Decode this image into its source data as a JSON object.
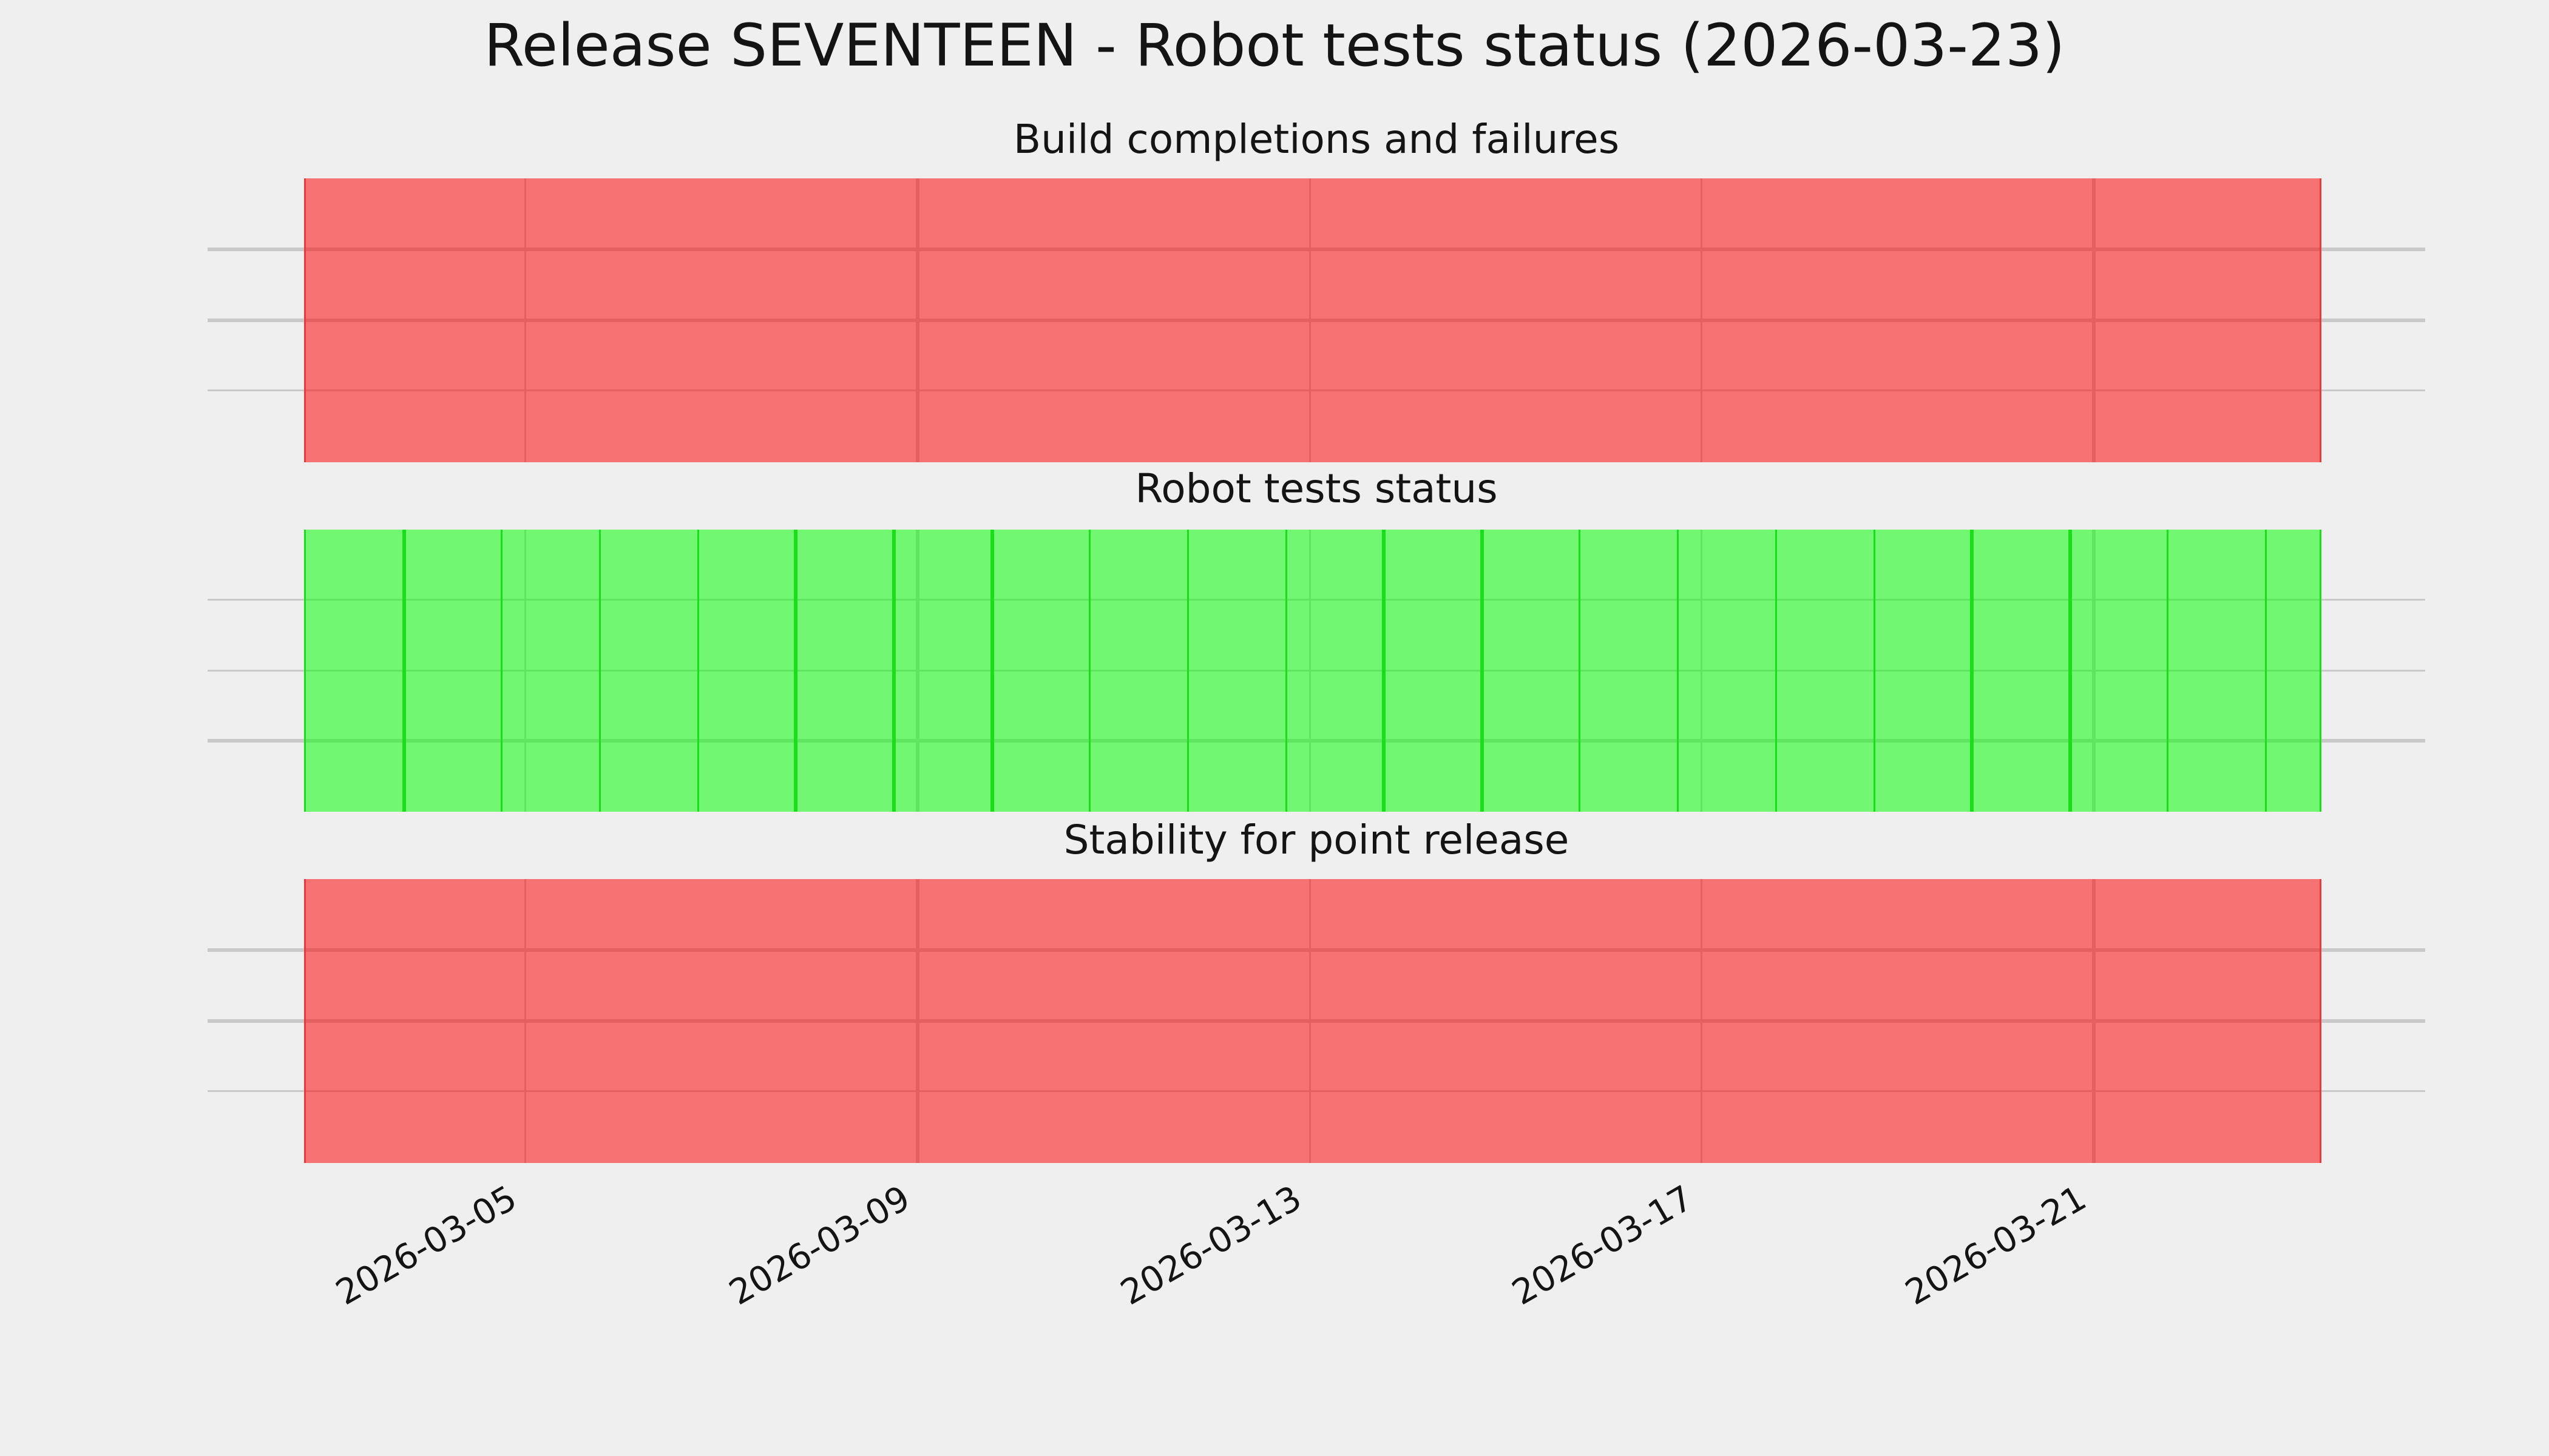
{
  "title": "Release SEVENTEEN - Robot tests status (2026-03-23)",
  "background": "#efefef",
  "gridline_color": "#c9c9c9",
  "text_color": "#141414",
  "chart_data": {
    "type": "bar",
    "title": "Release SEVENTEEN - Robot tests status (2026-03-23)",
    "x_start_date": "2026-03-03",
    "x_end_date": "2026-03-23",
    "days": 21,
    "x_ticks": [
      "2026-03-05",
      "2026-03-09",
      "2026-03-13",
      "2026-03-17",
      "2026-03-21"
    ],
    "x_tick_rotation_deg": 30,
    "ylim": [
      0,
      4
    ],
    "y_gridlines": [
      1,
      2,
      3
    ],
    "grid": "on",
    "legend": "none",
    "subplots": [
      {
        "title": "Build completions and failures",
        "status": "failing",
        "bar_value": 4,
        "fill_rgba": "rgba(255,0,0,0.52)",
        "edge_color": "#e8393d",
        "per_day_edges": false
      },
      {
        "title": "Robot tests status",
        "status": "passing",
        "bar_value": 4,
        "fill_rgba": "rgba(0,255,0,0.52)",
        "edge_color": "#1ade1a",
        "per_day_edges": true
      },
      {
        "title": "Stability for point release",
        "status": "failing",
        "bar_value": 4,
        "fill_rgba": "rgba(255,0,0,0.52)",
        "edge_color": "#e8393d",
        "per_day_edges": false
      }
    ]
  }
}
